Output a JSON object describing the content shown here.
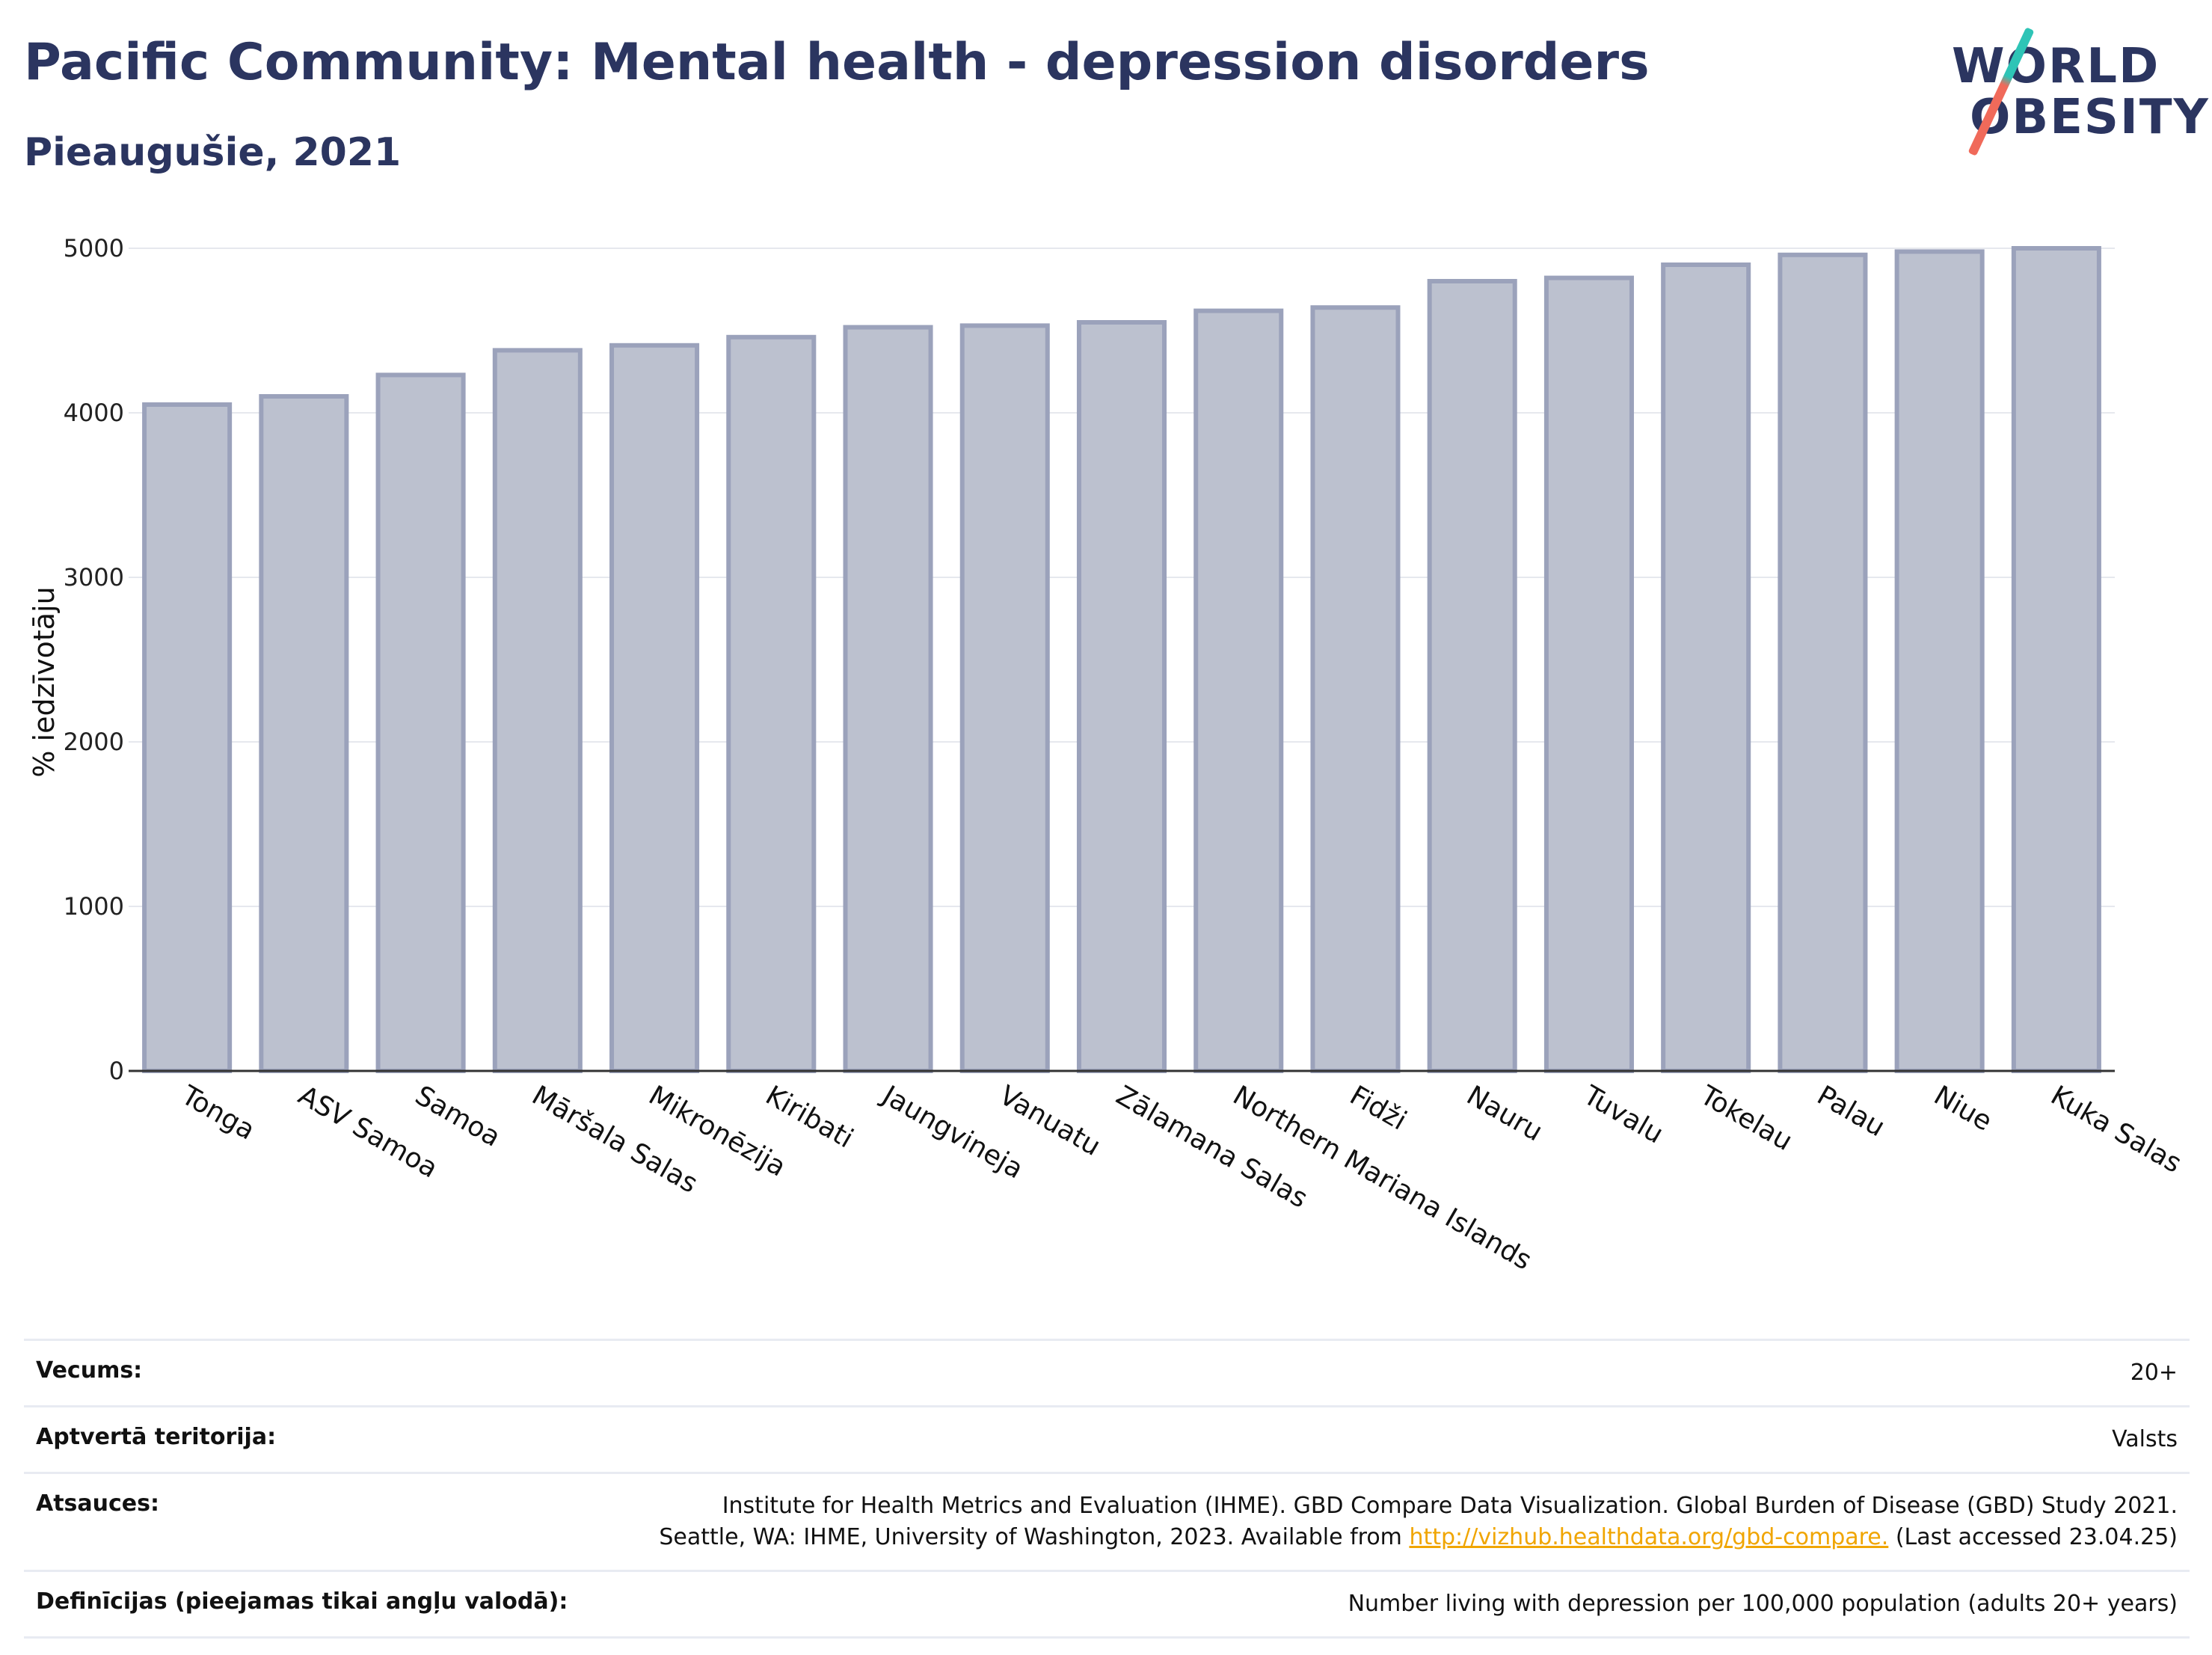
{
  "header": {
    "title": "Pacific Community: Mental health - depression disorders",
    "subtitle": "Pieaugušie, 2021"
  },
  "logo": {
    "line1": "WORLD",
    "line2": "OBESITY",
    "accent_top": "#2ec4b6",
    "accent_bottom": "#f06a5a"
  },
  "colors": {
    "bar_fill": "#bcc1cf",
    "bar_stroke": "#9ba2bb",
    "text_primary": "#2b3560"
  },
  "chart_data": {
    "type": "bar",
    "categories": [
      "Tonga",
      "ASV Samoa",
      "Samoa",
      "Māršala Salas",
      "Mikronēzija",
      "Kiribati",
      "Jaungvineja",
      "Vanuatu",
      "Zālamana Salas",
      "Northern Mariana Islands",
      "Fidži",
      "Nauru",
      "Tuvalu",
      "Tokelau",
      "Palau",
      "Niue",
      "Kuka Salas"
    ],
    "values": [
      4050,
      4100,
      4230,
      4380,
      4410,
      4460,
      4520,
      4530,
      4550,
      4620,
      4640,
      4800,
      4820,
      4900,
      4960,
      4980,
      5000
    ],
    "ylabel": "% iedzīvotāju",
    "ylim": [
      0,
      5000
    ],
    "yticks": [
      0,
      1000,
      2000,
      3000,
      4000,
      5000
    ],
    "grid": true,
    "legend": "none"
  },
  "meta": {
    "age_label": "Vecums:",
    "age_value": "20+",
    "coverage_label": "Aptvertā teritorija:",
    "coverage_value": "Valsts",
    "sources_label": "Atsauces:",
    "sources_line1": "Institute for Health Metrics and Evaluation (IHME). GBD Compare Data Visualization. Global Burden of Disease (GBD) Study 2021.",
    "sources_line2_pre": "Seattle, WA: IHME, University of Washington, 2023. Available from ",
    "sources_link": "http://vizhub.healthdata.org/gbd-compare.",
    "sources_line2_post": " (Last accessed 23.04.25)",
    "definitions_label": "Definīcijas (pieejamas tikai angļu valodā):",
    "definitions_value": "Number living with depression per 100,000 population (adults 20+ years)"
  }
}
